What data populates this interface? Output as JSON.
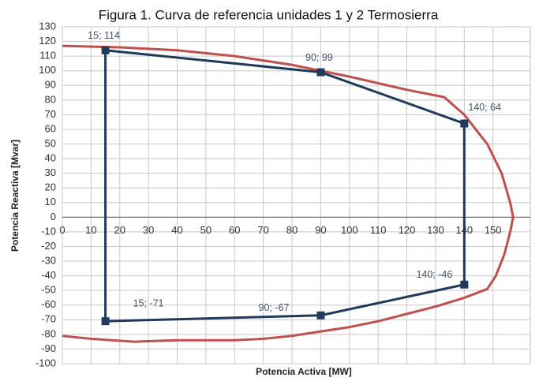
{
  "chart_data": {
    "type": "line",
    "title": "Figura 1. Curva de referencia unidades 1 y 2 Termosierra",
    "x_label": "Potencia Activa [MW]",
    "y_label": "Potencia Reactiva [Mvar]",
    "xlim": [
      0,
      163
    ],
    "ylim": [
      -100,
      130
    ],
    "xticks": [
      0,
      10,
      20,
      30,
      40,
      50,
      60,
      70,
      80,
      90,
      100,
      110,
      120,
      130,
      140,
      150
    ],
    "yticks": [
      -100,
      -90,
      -80,
      -70,
      -60,
      -50,
      -40,
      -30,
      -20,
      -10,
      0,
      10,
      20,
      30,
      40,
      50,
      60,
      70,
      80,
      90,
      100,
      110,
      120,
      130
    ],
    "grid": true,
    "series": [
      {
        "color": "#c0504d",
        "x": [
          0,
          20,
          40,
          60,
          80,
          100,
          120,
          133,
          140,
          148,
          153,
          156,
          157,
          156,
          154,
          151,
          148,
          140,
          130,
          120,
          110,
          100,
          90,
          80,
          70,
          60,
          40,
          25,
          10,
          0
        ],
        "values": [
          117,
          116,
          114,
          110,
          104,
          96,
          87,
          82,
          70,
          50,
          30,
          10,
          0,
          -10,
          -25,
          -40,
          -49,
          -55,
          -61,
          -66,
          -71,
          -75,
          -78,
          -81,
          -83,
          -84,
          -84,
          -85,
          -83,
          -81
        ]
      },
      {
        "color": "#1f3a5a",
        "markers": true,
        "closed": true,
        "x": [
          15,
          90,
          140,
          140,
          90,
          15
        ],
        "values": [
          114,
          99,
          64,
          -46,
          -67,
          -71
        ],
        "value_labels": [
          "15; 114",
          "90; 99",
          "140; 64",
          "140; -46",
          "90; -67",
          "15; -71"
        ]
      }
    ]
  }
}
